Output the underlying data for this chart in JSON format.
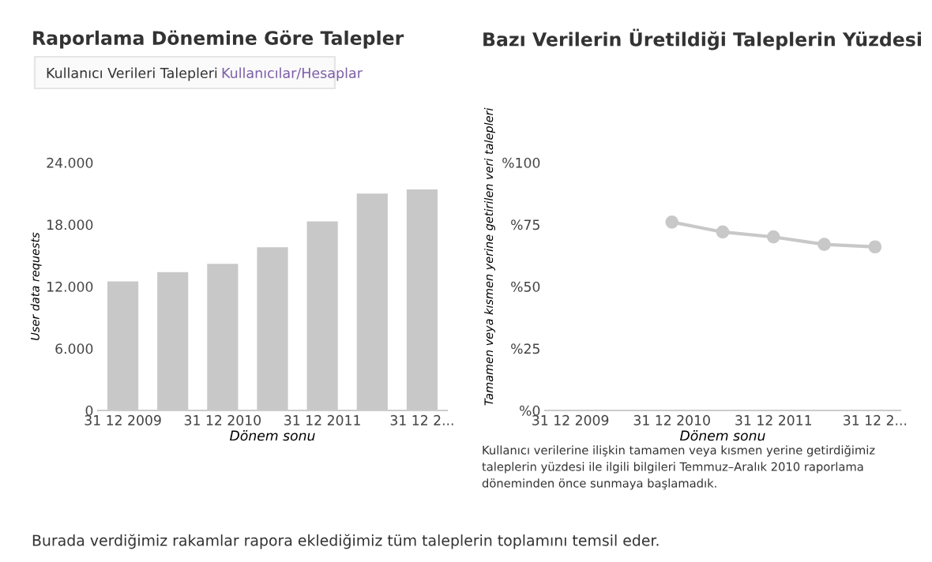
{
  "chart_data": [
    {
      "type": "bar",
      "title": "Raporlama Dönemine Göre Talepler",
      "subtitle": "Kullanıcı Verileri Talepleri",
      "annotations": [
        "Kullanıcılar/Hesaplar",
        "Burada verdiğimiz rakamlar rapora eklediğimiz tüm taleplerin toplamını temsil eder."
      ],
      "xlabel": "Dönem sonu",
      "ylabel": "User data requests",
      "categories": [
        "31 12 2009",
        null,
        "31 12 2010",
        null,
        "31 12 2011",
        null,
        "31 12 2..."
      ],
      "values": [
        12500,
        13400,
        14200,
        15800,
        18300,
        21000,
        21400
      ],
      "color": "#c8c8c8",
      "ylim": [
        0,
        24000
      ],
      "yticks": [
        {
          "value": 0,
          "label": "0"
        },
        {
          "value": 6000,
          "label": "6.000"
        },
        {
          "value": 12000,
          "label": "12.000"
        },
        {
          "value": 18000,
          "label": "18.000"
        },
        {
          "value": 24000,
          "label": "24.000"
        }
      ],
      "grid": false,
      "legend": false
    },
    {
      "type": "line",
      "title": "Bazı Verilerin Üretildiği Taleplerin Yüzdesi",
      "xlabel": "Dönem sonu",
      "ylabel": "Tamamen veya kısmen yerine getirilen veri talepleri",
      "annotations": [
        "Kullanıcı verilerine ilişkin tamamen veya kısmen yerine getirdiğimiz taleplerin yüzdesi ile ilgili bilgileri Temmuz–Aralık 2010 raporlama döneminden önce sunmaya başlamadık."
      ],
      "categories": [
        "31 12 2009",
        null,
        "31 12 2010",
        null,
        "31 12 2011",
        null,
        "31 12 2..."
      ],
      "values": [
        null,
        null,
        76,
        72,
        70,
        67,
        66
      ],
      "color": "#c8c8c8",
      "marker": "circle",
      "ylim": [
        0,
        100
      ],
      "yticks": [
        {
          "value": 0,
          "label": "%0"
        },
        {
          "value": 25,
          "label": "%25"
        },
        {
          "value": 50,
          "label": "%50"
        },
        {
          "value": 75,
          "label": "%75"
        },
        {
          "value": 100,
          "label": "%100"
        }
      ],
      "grid": false,
      "legend": false
    }
  ]
}
